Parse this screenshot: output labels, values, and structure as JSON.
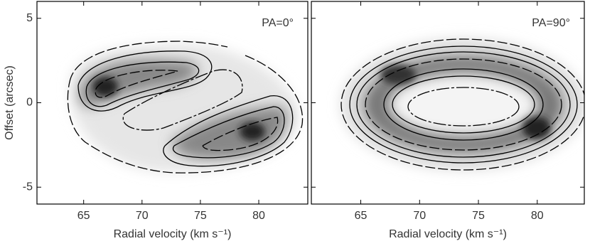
{
  "chart_data": [
    {
      "type": "contour",
      "annotation": "PA=0°",
      "x_label": "Radial velocity (km s⁻¹)",
      "y_label": "Offset (arcsec)",
      "xlim": [
        61,
        84.2
      ],
      "ylim": [
        -6,
        6
      ],
      "xticks": [
        65,
        70,
        75,
        80
      ],
      "yticks": [
        5,
        0,
        -5
      ]
    },
    {
      "type": "contour",
      "annotation": "PA=90°",
      "x_label": "Radial velocity (km s⁻¹)",
      "xlim": [
        60.8,
        84
      ],
      "ylim": [
        -6,
        6
      ],
      "xticks": [
        65,
        70,
        75,
        80
      ],
      "yticks": [
        5,
        0,
        -5
      ]
    }
  ]
}
